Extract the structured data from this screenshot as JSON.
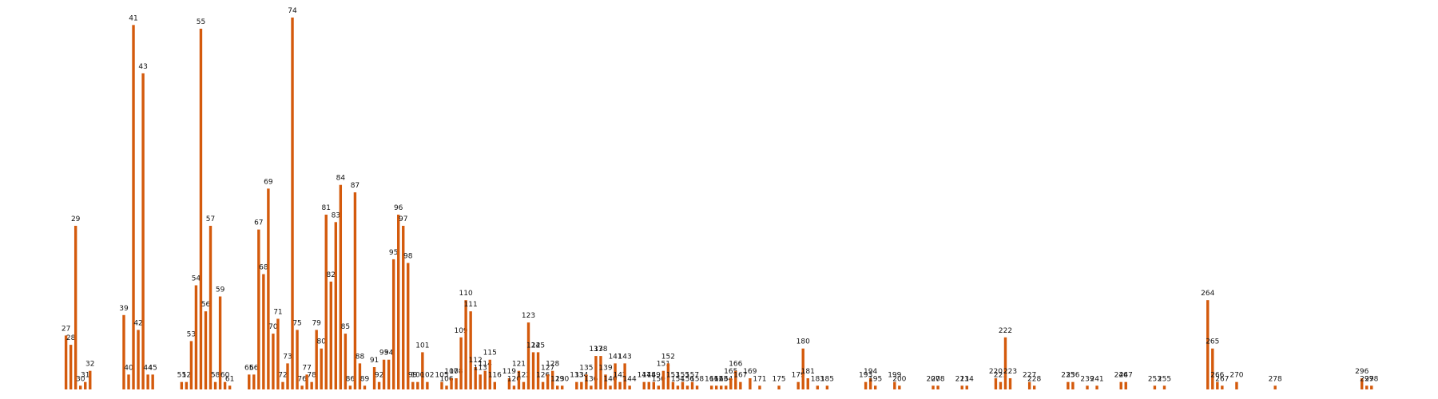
{
  "chart_data": {
    "type": "bar",
    "color": "#d45a0c",
    "x": [
      27,
      28,
      29,
      30,
      31,
      32,
      39,
      40,
      41,
      42,
      43,
      44,
      45,
      51,
      52,
      53,
      54,
      55,
      56,
      57,
      58,
      59,
      60,
      61,
      65,
      66,
      67,
      68,
      69,
      70,
      71,
      72,
      73,
      74,
      75,
      76,
      77,
      78,
      79,
      80,
      81,
      82,
      83,
      84,
      85,
      86,
      87,
      88,
      89,
      91,
      92,
      93,
      94,
      95,
      96,
      97,
      98,
      99,
      100,
      101,
      102,
      105,
      106,
      107,
      108,
      109,
      110,
      111,
      112,
      113,
      114,
      115,
      116,
      119,
      120,
      121,
      122,
      123,
      124,
      125,
      126,
      127,
      128,
      129,
      130,
      133,
      134,
      135,
      136,
      137,
      138,
      139,
      140,
      141,
      142,
      143,
      144,
      147,
      148,
      149,
      150,
      151,
      152,
      153,
      154,
      155,
      156,
      157,
      158,
      161,
      162,
      163,
      164,
      165,
      166,
      167,
      169,
      171,
      175,
      179,
      180,
      181,
      183,
      185,
      193,
      194,
      195,
      199,
      200,
      207,
      208,
      213,
      214,
      220,
      221,
      222,
      223,
      227,
      228,
      235,
      236,
      239,
      241,
      246,
      247,
      253,
      255,
      264,
      265,
      266,
      267,
      270,
      278,
      296,
      297,
      298
    ],
    "values": [
      14.5,
      12,
      44,
      1,
      2,
      5,
      20,
      4,
      98,
      16,
      85,
      4,
      4,
      2,
      2,
      13,
      28,
      97,
      21,
      44,
      2,
      25,
      2,
      1,
      4,
      4,
      43,
      31,
      54,
      15,
      19,
      2,
      7,
      100,
      16,
      1,
      4,
      2,
      16,
      11,
      47,
      29,
      45,
      55,
      15,
      1,
      53,
      7,
      1,
      6,
      2,
      8,
      8,
      35,
      47,
      44,
      34,
      2,
      2,
      10,
      2,
      2,
      1,
      3,
      3,
      14,
      24,
      21,
      6,
      4,
      5,
      8,
      2,
      3,
      1,
      5,
      2,
      18,
      10,
      10,
      2,
      4,
      5,
      1,
      1,
      2,
      2,
      4,
      1,
      9,
      9,
      4,
      1,
      7,
      2,
      7,
      1,
      2,
      2,
      2,
      1,
      5,
      7,
      2,
      1,
      2,
      1,
      2,
      1,
      1,
      1,
      1,
      1,
      3,
      5,
      2,
      3,
      1,
      1,
      2,
      11,
      3,
      1,
      1,
      2,
      3,
      1,
      2,
      1,
      1,
      1,
      1,
      1,
      3,
      2,
      14,
      3,
      2,
      1,
      2,
      2,
      1,
      1,
      2,
      2,
      1,
      1,
      24,
      11,
      2,
      1,
      2,
      1,
      3,
      1,
      1
    ],
    "xlim": [
      13.3,
      311.8
    ],
    "ylim": [
      0,
      100
    ]
  }
}
